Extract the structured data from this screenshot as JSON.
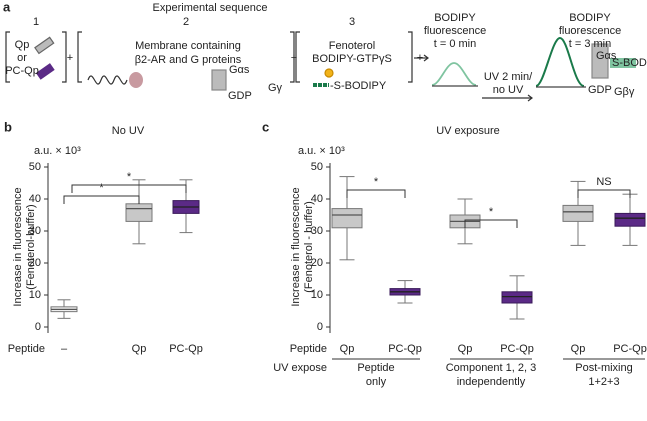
{
  "panel_a": {
    "label": "a",
    "title": "Experimental sequence",
    "steps": [
      "1",
      "2",
      "3"
    ],
    "plus": "+",
    "step1": [
      "Qp",
      "or",
      "PC-Qp"
    ],
    "step2": [
      "Membrane containing",
      "β2-AR and G proteins"
    ],
    "step2_icons": [
      "Gαs",
      "GDP",
      "Gγ"
    ],
    "step3": [
      "Fenoterol",
      "BODIPY-GTPγS"
    ],
    "step3_probe": "-S-BODIPY",
    "readout_start": [
      "BODIPY",
      "fluorescence",
      "t = 0 min"
    ],
    "treatment": [
      "UV 2 min/",
      "no UV"
    ],
    "readout_end": [
      "BODIPY",
      "fluorescence",
      "t = 3 min"
    ],
    "end_icons": [
      "Gαs",
      "S-BODIPY",
      "GDP",
      "Gβγ"
    ]
  },
  "chart_data": [
    {
      "type": "box",
      "panel": "b",
      "title": "No UV",
      "unit_label": "a.u. × 10³",
      "ylabel": [
        "Increase in fluorescence",
        "(Fenoterol-buffer)"
      ],
      "row_label": "Peptide",
      "categories": [
        "–",
        "Qp",
        "PC-Qp"
      ],
      "min": [
        2.7,
        26,
        29.5
      ],
      "q1": [
        4.8,
        33,
        35.5
      ],
      "median": [
        5.5,
        37,
        37.5
      ],
      "q3": [
        6.3,
        38.5,
        39.5
      ],
      "max": [
        8.5,
        46,
        46
      ],
      "colors": [
        "#eeeeee",
        "#c8c8c8",
        "#5b2a86"
      ],
      "ylim": [
        0,
        50
      ],
      "yticks": [
        0,
        10,
        20,
        30,
        40,
        50
      ],
      "significance": [
        "*",
        "*"
      ]
    },
    {
      "type": "box",
      "panel": "c",
      "title": "UV exposure",
      "title_color": "#7b3fa0",
      "unit_label": "a.u. × 10³",
      "ylabel": [
        "Increase in fluorescence",
        "(Fenoterol - buffer)"
      ],
      "row_label": "Peptide",
      "row2_label": "UV expose",
      "categories": [
        "Qp",
        "PC-Qp",
        "Qp",
        "PC-Qp",
        "Qp",
        "PC-Qp"
      ],
      "groups": [
        [
          "Peptide",
          "only"
        ],
        [
          "Component 1, 2, 3",
          "independently"
        ],
        [
          "Post-mixing",
          "1+2+3"
        ]
      ],
      "min": [
        21,
        7.5,
        26,
        2.5,
        25.5,
        25.5
      ],
      "q1": [
        31,
        10,
        31,
        7.5,
        33,
        31.5
      ],
      "median": [
        35,
        11,
        33,
        9.5,
        36,
        34
      ],
      "q3": [
        37,
        12,
        35,
        11,
        38,
        35.5
      ],
      "max": [
        47,
        14.5,
        40,
        16,
        45.5,
        41.5
      ],
      "colors": [
        "#c8c8c8",
        "#5b2a86",
        "#c8c8c8",
        "#5b2a86",
        "#c8c8c8",
        "#5b2a86"
      ],
      "ylim": [
        0,
        50
      ],
      "yticks": [
        0,
        10,
        20,
        30,
        40,
        50
      ],
      "significance": [
        "*",
        "*",
        "NS"
      ]
    }
  ]
}
